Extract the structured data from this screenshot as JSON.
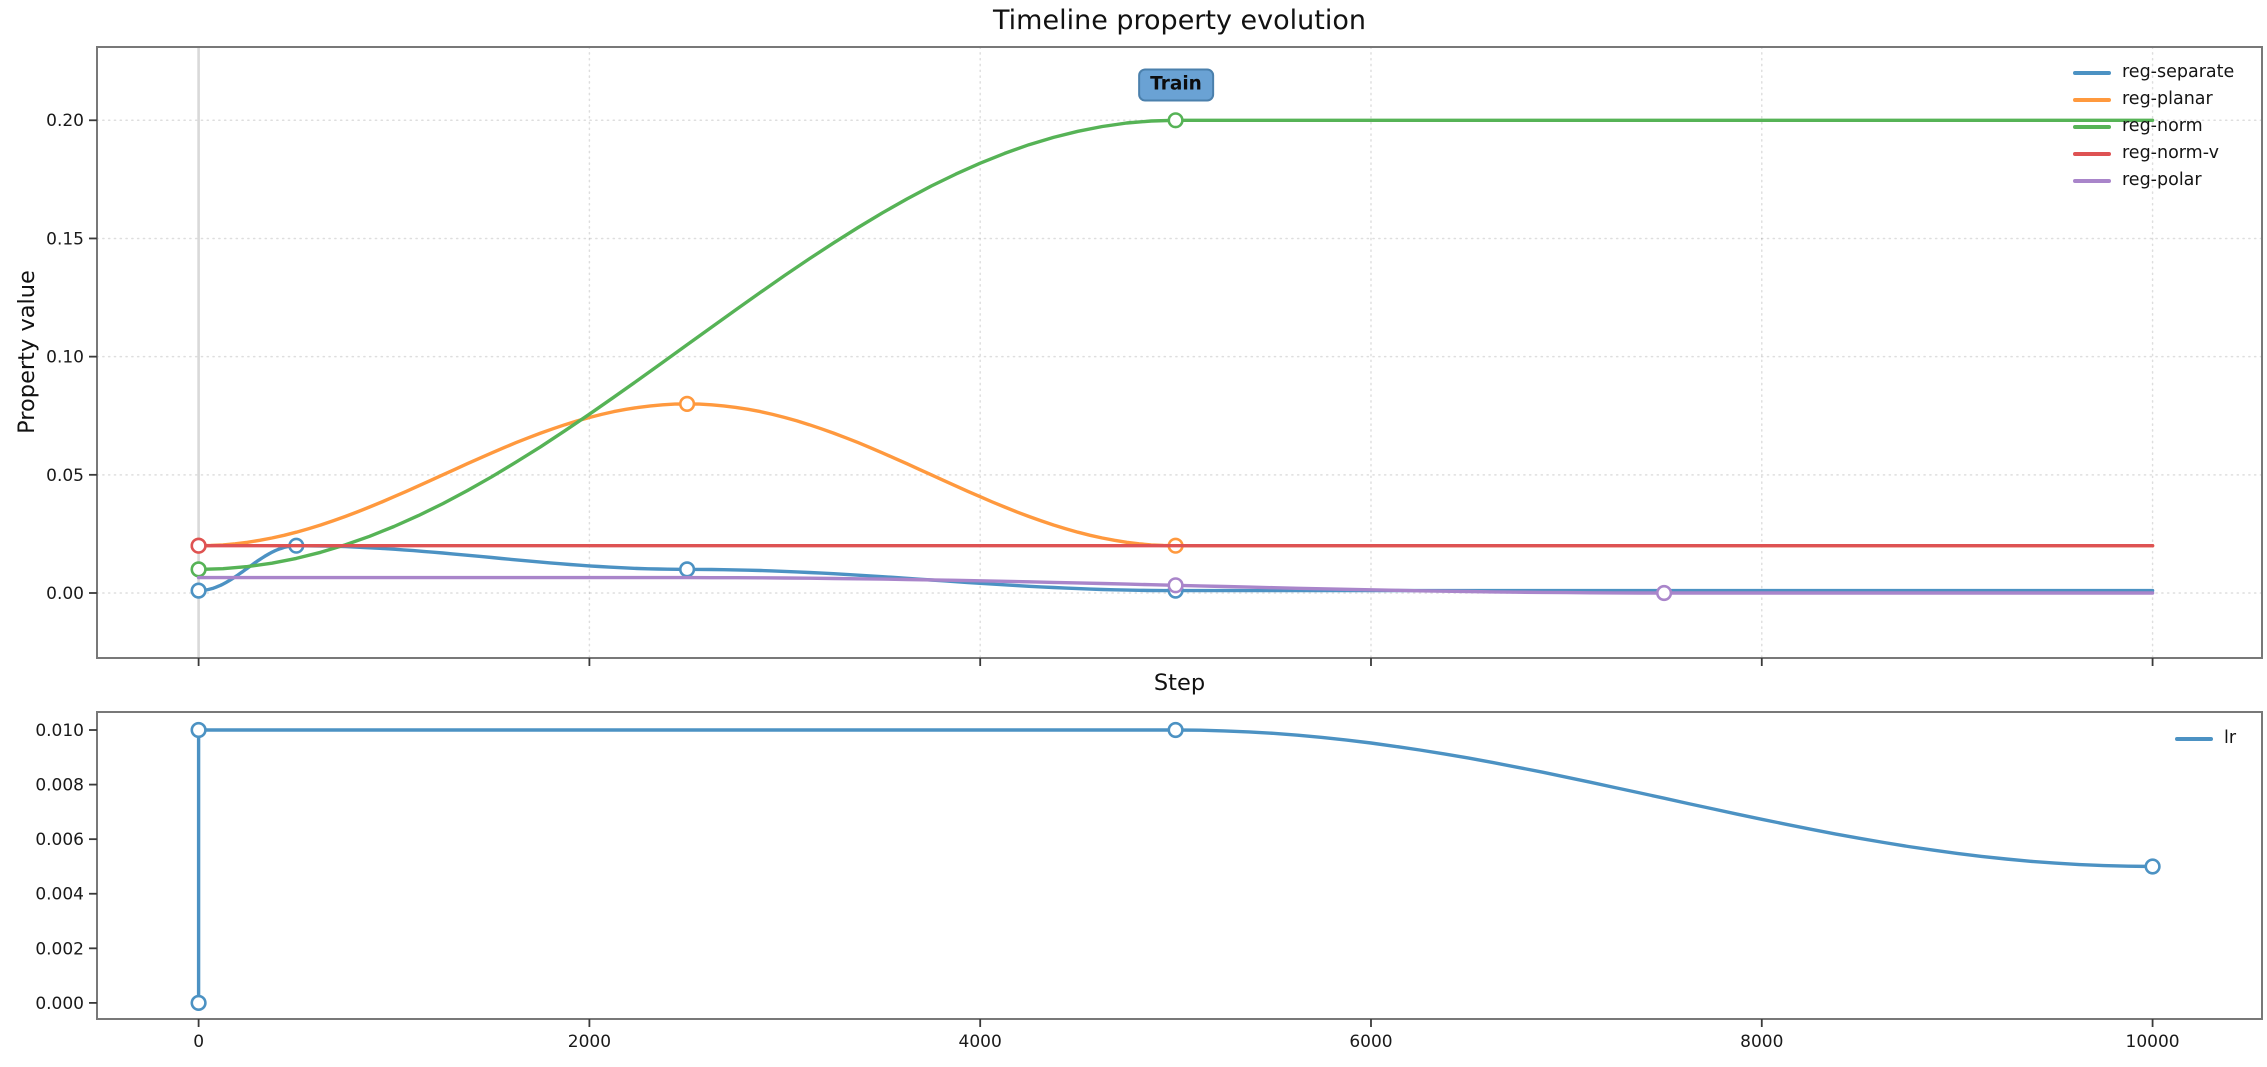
{
  "chart_data": [
    {
      "id": "property-evolution",
      "type": "line",
      "title": "Timeline property evolution",
      "xlabel": "Step",
      "ylabel": "Property value",
      "xlim": [
        -520,
        10560
      ],
      "ylim": [
        -0.0275,
        0.231
      ],
      "xticks": [
        0,
        2000,
        4000,
        6000,
        8000,
        10000
      ],
      "show_xtick_labels": false,
      "yticks": [
        0,
        0.05,
        0.1,
        0.15,
        0.2
      ],
      "ytick_labels": [
        "0.00",
        "0.05",
        "0.10",
        "0.15",
        "0.20"
      ],
      "grid": true,
      "grid_style": "dotted",
      "vline_x": 0,
      "legend_position": "upper right, frameless",
      "interpolation": "cosine",
      "annotation": {
        "text": "Train",
        "x": 5000,
        "y": 0.2,
        "box_color": "#6AA2D4"
      },
      "series": [
        {
          "name": "reg-separate",
          "color": "#4C92C3",
          "points": [
            [
              0,
              0.001
            ],
            [
              500,
              0.02
            ],
            [
              2500,
              0.01
            ],
            [
              5000,
              0.001
            ],
            [
              10000,
              0.001
            ]
          ],
          "markers": [
            [
              0,
              0.001
            ],
            [
              500,
              0.02
            ],
            [
              2500,
              0.01
            ],
            [
              5000,
              0.001
            ]
          ]
        },
        {
          "name": "reg-planar",
          "color": "#FF993E",
          "points": [
            [
              0,
              0.02
            ],
            [
              2500,
              0.08
            ],
            [
              5000,
              0.02
            ],
            [
              10000,
              0.02
            ]
          ],
          "markers": [
            [
              0,
              0.02
            ],
            [
              2500,
              0.08
            ],
            [
              5000,
              0.02
            ]
          ]
        },
        {
          "name": "reg-norm",
          "color": "#56B356",
          "points": [
            [
              0,
              0.01
            ],
            [
              5000,
              0.2
            ],
            [
              10000,
              0.2
            ]
          ],
          "markers": [
            [
              0,
              0.01
            ],
            [
              5000,
              0.2
            ]
          ]
        },
        {
          "name": "reg-norm-v",
          "color": "#DE5253",
          "points": [
            [
              0,
              0.02
            ],
            [
              10000,
              0.02
            ]
          ],
          "markers": [
            [
              0,
              0.02
            ]
          ]
        },
        {
          "name": "reg-polar",
          "color": "#A985CA",
          "points": [
            [
              0,
              0.0065
            ],
            [
              2500,
              0.0065
            ],
            [
              7500,
              0
            ],
            [
              10000,
              0
            ]
          ],
          "markers": [
            [
              5000,
              0.00325
            ],
            [
              7500,
              0
            ]
          ]
        }
      ]
    },
    {
      "id": "learning-rate",
      "type": "line",
      "title": "",
      "xlabel": "",
      "ylabel": "",
      "xlim": [
        -520,
        10560
      ],
      "ylim": [
        -0.00059,
        0.01066
      ],
      "xticks": [
        0,
        2000,
        4000,
        6000,
        8000,
        10000
      ],
      "xtick_labels": [
        "0",
        "2000",
        "4000",
        "6000",
        "8000",
        "10000"
      ],
      "show_xtick_labels": true,
      "yticks": [
        0,
        0.002,
        0.004,
        0.006,
        0.008,
        0.01
      ],
      "ytick_labels": [
        "0.000",
        "0.002",
        "0.004",
        "0.006",
        "0.008",
        "0.010"
      ],
      "grid": false,
      "legend_position": "upper right, frameless",
      "interpolation": "cosine",
      "series": [
        {
          "name": "lr",
          "color": "#4C92C3",
          "points": [
            [
              0,
              0
            ],
            [
              0,
              0.01
            ],
            [
              5000,
              0.01
            ],
            [
              10000,
              0.005
            ]
          ],
          "markers": [
            [
              0,
              0
            ],
            [
              0,
              0.01
            ],
            [
              5000,
              0.01
            ],
            [
              10000,
              0.005
            ]
          ]
        }
      ]
    }
  ]
}
